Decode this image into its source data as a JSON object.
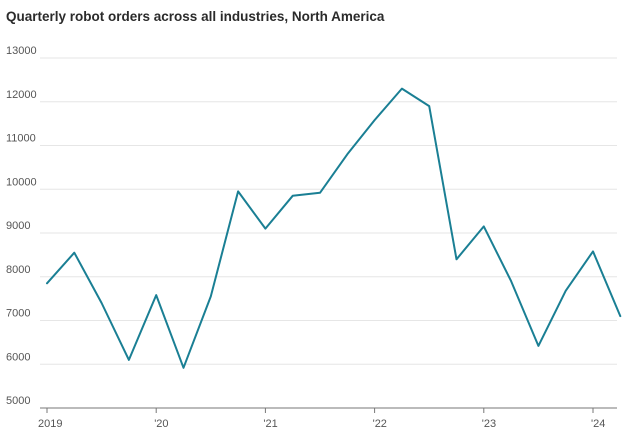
{
  "chart_data": {
    "type": "line",
    "title": "Quarterly robot orders across all industries, North America",
    "xlabel": "",
    "ylabel": "",
    "ylim": [
      5000,
      13000
    ],
    "yticks": [
      "13000",
      "12000",
      "11000",
      "10000",
      "9000",
      "8000",
      "7000",
      "6000",
      "5000"
    ],
    "ytick_values": [
      13000,
      12000,
      11000,
      10000,
      9000,
      8000,
      7000,
      6000,
      5000
    ],
    "xticks": [
      "2019",
      "'20",
      "'21",
      "'22",
      "'23",
      "'24"
    ],
    "xtick_quarter_index": [
      0,
      4,
      8,
      12,
      16,
      20
    ],
    "grid": true,
    "legend": "none",
    "x": [
      "2019 Q1",
      "2019 Q2",
      "2019 Q3",
      "2019 Q4",
      "2020 Q1",
      "2020 Q2",
      "2020 Q3",
      "2020 Q4",
      "2021 Q1",
      "2021 Q2",
      "2021 Q3",
      "2021 Q4",
      "2022 Q1",
      "2022 Q2",
      "2022 Q3",
      "2022 Q4",
      "2023 Q1",
      "2023 Q2",
      "2023 Q3",
      "2023 Q4",
      "2024 Q1",
      "2024 Q2"
    ],
    "series": [
      {
        "name": "",
        "color": "#1a7f94",
        "values": [
          7850,
          8550,
          7400,
          6100,
          7580,
          5920,
          7550,
          9950,
          9100,
          9850,
          9920,
          10800,
          11580,
          12300,
          11900,
          8400,
          9150,
          7900,
          6420,
          7680,
          8580,
          7100
        ]
      }
    ]
  }
}
